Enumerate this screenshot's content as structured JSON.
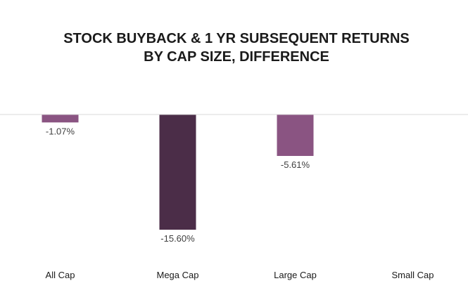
{
  "chart_data": {
    "type": "bar",
    "title": [
      "STOCK BUYBACK & 1 YR SUBSEQUENT RETURNS",
      "BY CAP SIZE, DIFFERENCE"
    ],
    "categories": [
      "All Cap",
      "Mega Cap",
      "Large Cap",
      "Small Cap"
    ],
    "values": [
      -1.07,
      -15.6,
      -5.61,
      0
    ],
    "data_labels": [
      "-1.07%",
      "-15.60%",
      "-5.61%",
      ""
    ],
    "bar_colors": [
      "#8a5482",
      "#4b2d48",
      "#8a5482",
      "#8a5482"
    ],
    "ylim": [
      -17.5,
      0
    ],
    "grid": false,
    "legend": "none",
    "axis_color": "#d9d9d9"
  }
}
